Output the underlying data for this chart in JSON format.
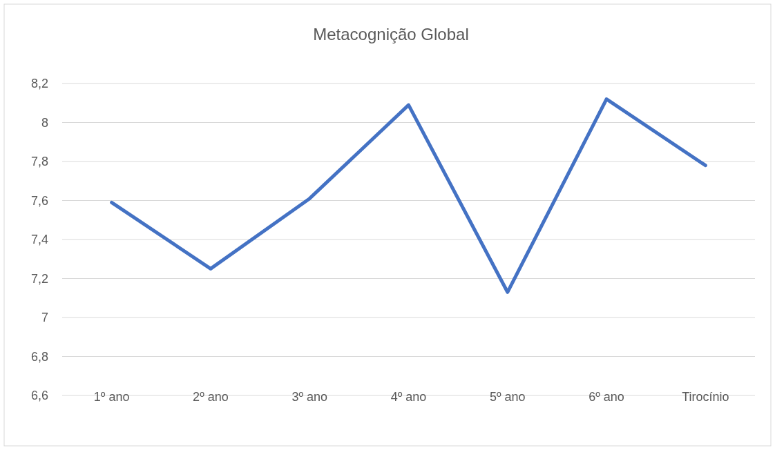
{
  "chart_data": {
    "type": "line",
    "title": "Metacognição Global",
    "categories": [
      "1º ano",
      "2º ano",
      "3º ano",
      "4º ano",
      "5º ano",
      "6º ano",
      "Tirocínio"
    ],
    "series": [
      {
        "color": "#4472c4",
        "values": [
          7.59,
          7.25,
          7.61,
          8.09,
          7.13,
          8.12,
          7.78
        ]
      }
    ],
    "ylim": [
      6.6,
      8.2
    ],
    "yticks": [
      {
        "value": 6.6,
        "label": "6,6"
      },
      {
        "value": 6.8,
        "label": "6,8"
      },
      {
        "value": 7,
        "label": "7"
      },
      {
        "value": 7.2,
        "label": "7,2"
      },
      {
        "value": 7.4,
        "label": "7,4"
      },
      {
        "value": 7.6,
        "label": "7,6"
      },
      {
        "value": 7.8,
        "label": "7,8"
      },
      {
        "value": 8,
        "label": "8"
      },
      {
        "value": 8.2,
        "label": "8,2"
      }
    ],
    "grid": "y",
    "marker": "none",
    "line_style": "solid"
  }
}
